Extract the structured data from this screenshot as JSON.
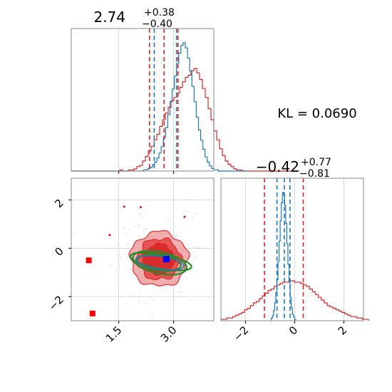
{
  "chart_data": {
    "type": "corner",
    "kl_text": "KL = 0.0690",
    "colors": {
      "reference": "#d62728",
      "approximation": "#1f77b4",
      "contour_overlay": "#2a8a2a",
      "marker": "#ff0000",
      "mean_marker": "#0000ff"
    },
    "param0": {
      "title_main": "2.74",
      "title_plus": "+0.38",
      "title_minus": "−0.40",
      "xlim": [
        0.2,
        4.1
      ],
      "xticks": [
        1.5,
        3.0
      ],
      "xtick_labels": [
        "1.5",
        "3.0"
      ],
      "quantiles_reference": [
        2.34,
        2.74,
        3.12
      ],
      "quantiles_approximation": [
        2.47,
        3.08
      ],
      "hist_reference": {
        "bin_start": 0.2,
        "bin_width": 0.078,
        "counts": [
          0,
          0,
          0,
          0,
          0,
          0,
          0,
          0,
          0,
          0,
          0,
          0,
          0,
          0,
          0,
          0,
          0,
          1,
          0,
          0,
          1,
          1,
          2,
          4,
          5,
          9,
          13,
          18,
          22,
          28,
          33,
          40,
          46,
          52,
          57,
          63,
          66,
          70,
          75,
          80,
          84,
          86,
          90,
          92,
          88,
          82,
          74,
          66,
          56,
          46,
          36,
          28,
          20,
          14,
          9,
          6,
          4,
          2,
          1,
          1,
          0,
          0,
          0,
          0,
          0,
          0,
          0,
          0,
          0,
          0,
          0,
          0,
          0,
          0,
          0,
          0,
          0,
          0,
          0,
          0
        ]
      },
      "hist_approximation": {
        "bin_start": 0.2,
        "bin_width": 0.06,
        "counts": [
          0,
          0,
          0,
          0,
          0,
          0,
          0,
          0,
          0,
          0,
          0,
          0,
          0,
          0,
          0,
          0,
          0,
          0,
          0,
          0,
          0,
          0,
          0,
          0,
          0,
          0,
          0,
          0,
          0,
          0,
          0,
          0,
          0,
          1,
          1,
          2,
          3,
          5,
          7,
          10,
          14,
          19,
          26,
          34,
          44,
          54,
          64,
          74,
          84,
          92,
          98,
          100,
          96,
          88,
          78,
          66,
          54,
          42,
          32,
          24,
          17,
          11,
          7,
          4,
          2,
          1,
          1,
          0,
          0,
          0,
          0,
          0,
          0,
          0,
          0,
          0,
          0,
          0,
          0,
          0
        ]
      }
    },
    "param1": {
      "title_main": "−0.42",
      "title_plus": "+0.77",
      "title_minus": "−0.81",
      "xlim": [
        -3.0,
        2.8
      ],
      "xticks": [
        -2,
        0,
        2
      ],
      "xtick_labels": [
        "−2",
        "0",
        "2"
      ],
      "quantiles_reference": [
        -1.23,
        0.35
      ],
      "quantiles_approximation": [
        -0.72,
        -0.42,
        -0.19
      ],
      "hist_reference": {
        "bin_start": -3.0,
        "bin_width": 0.12,
        "counts": [
          1,
          1,
          2,
          2,
          3,
          4,
          5,
          6,
          8,
          9,
          11,
          13,
          14,
          16,
          18,
          20,
          22,
          23,
          25,
          26,
          27,
          28,
          28,
          29,
          29,
          28,
          28,
          27,
          26,
          25,
          23,
          21,
          19,
          17,
          15,
          13,
          11,
          10,
          9,
          8,
          7,
          6,
          5,
          4,
          3,
          3,
          2,
          2,
          1,
          1
        ]
      },
      "hist_approximation": {
        "bin_start": -0.95,
        "bin_width": 0.045,
        "counts": [
          2,
          4,
          8,
          14,
          22,
          32,
          46,
          62,
          78,
          92,
          100,
          98,
          90,
          76,
          60,
          44,
          30,
          18,
          10,
          5,
          3,
          1
        ]
      }
    },
    "joint": {
      "xlim": [
        0.2,
        4.1
      ],
      "ylim": [
        -3.0,
        2.9
      ],
      "yticks": [
        -2,
        0,
        2
      ],
      "ytick_labels": [
        "−2",
        "0",
        "2"
      ],
      "mean_point": [
        2.8,
        -0.45
      ],
      "extra_points": [
        [
          0.68,
          -0.5
        ],
        [
          0.78,
          -2.7
        ]
      ],
      "contours_reference": [
        {
          "center": [
            2.6,
            -0.45
          ],
          "rx": 0.78,
          "ry": 1.13,
          "level": "outer"
        },
        {
          "center": [
            2.6,
            -0.45
          ],
          "rx": 0.58,
          "ry": 0.85,
          "level": "middle"
        },
        {
          "center": [
            2.6,
            -0.45
          ],
          "rx": 0.42,
          "ry": 0.62,
          "level": "inner"
        }
      ],
      "contours_approximation": [
        {
          "center": [
            2.65,
            -0.55
          ],
          "rx": 0.85,
          "ry": 0.3,
          "angle": -10
        },
        {
          "center": [
            2.62,
            -0.6
          ],
          "rx": 0.75,
          "ry": 0.45,
          "angle": -12
        },
        {
          "center": [
            2.6,
            -0.6
          ],
          "rx": 0.6,
          "ry": 0.32,
          "angle": -8
        }
      ]
    }
  }
}
